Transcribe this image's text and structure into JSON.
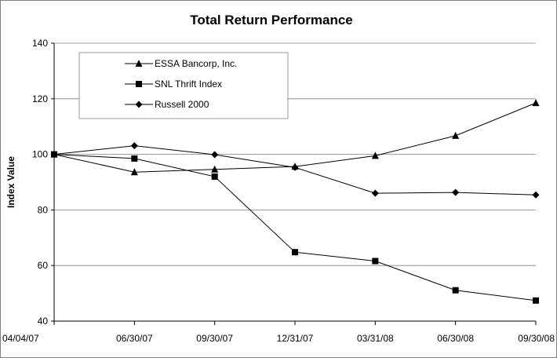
{
  "chart_data": {
    "type": "line",
    "title": "Total Return Performance",
    "xlabel": "",
    "ylabel": "Index Value",
    "categories": [
      "04/04/07",
      "06/30/07",
      "09/30/07",
      "12/31/07",
      "03/31/08",
      "06/30/08",
      "09/30/08"
    ],
    "ylim": [
      40,
      140
    ],
    "yticks": [
      40,
      60,
      80,
      100,
      120,
      140
    ],
    "grid": true,
    "legend_position": "top-left",
    "series": [
      {
        "name": "ESSA Bancorp, Inc.",
        "marker": "triangle",
        "values": [
          100,
          93.6,
          94.6,
          95.6,
          99.5,
          106.7,
          118.5
        ]
      },
      {
        "name": "SNL Thrift Index",
        "marker": "square",
        "values": [
          100,
          98.5,
          92.0,
          64.8,
          61.6,
          51.1,
          47.4
        ]
      },
      {
        "name": "Russell 2000",
        "marker": "diamond",
        "values": [
          100,
          103.1,
          99.9,
          95.3,
          86.0,
          86.3,
          85.4
        ]
      }
    ],
    "colors": {
      "line": "#000000",
      "grid": "#808080",
      "axis": "#000000"
    }
  }
}
